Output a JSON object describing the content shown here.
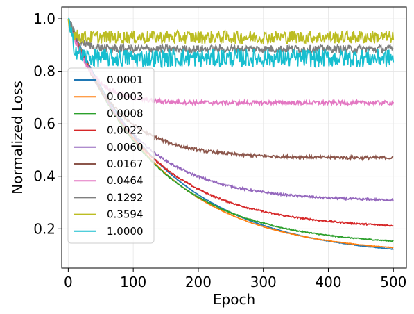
{
  "chart_data": {
    "type": "line",
    "xlabel": "Epoch",
    "ylabel": "Normalized Loss",
    "xlim": [
      -10,
      520
    ],
    "ylim": [
      0.05,
      1.045
    ],
    "xticks": [
      0,
      100,
      200,
      300,
      400,
      500
    ],
    "yticks": [
      0.2,
      0.4,
      0.6,
      0.8,
      1.0
    ],
    "xtick_labels": [
      "0",
      "100",
      "200",
      "300",
      "400",
      "500"
    ],
    "ytick_labels": [
      "0.2",
      "0.4",
      "0.6",
      "0.8",
      "1.0"
    ],
    "grid": true,
    "legend_position": "left",
    "series": [
      {
        "name": "0.0001",
        "color": "#1f77b4",
        "final": 0.09,
        "noise": 0.001,
        "start": 1.0,
        "tau": 150
      },
      {
        "name": "0.0003",
        "color": "#ff7f0e",
        "final": 0.103,
        "noise": 0.001,
        "start": 1.0,
        "tau": 140
      },
      {
        "name": "0.0008",
        "color": "#2ca02c",
        "final": 0.135,
        "noise": 0.002,
        "start": 1.0,
        "tau": 130
      },
      {
        "name": "0.0022",
        "color": "#d62728",
        "final": 0.2,
        "noise": 0.003,
        "start": 1.0,
        "tau": 120
      },
      {
        "name": "0.0060",
        "color": "#9467bd",
        "final": 0.305,
        "noise": 0.004,
        "start": 1.0,
        "tau": 100
      },
      {
        "name": "0.0167",
        "color": "#8c564b",
        "final": 0.47,
        "noise": 0.006,
        "start": 1.0,
        "tau": 70
      },
      {
        "name": "0.0464",
        "color": "#e377c2",
        "final": 0.68,
        "noise": 0.008,
        "start": 1.0,
        "tau": 35
      },
      {
        "name": "0.1292",
        "color": "#7f7f7f",
        "final": 0.885,
        "noise": 0.015,
        "start": 1.0,
        "tau": 15
      },
      {
        "name": "0.3594",
        "color": "#bcbd22",
        "final": 0.93,
        "noise": 0.025,
        "start": 1.0,
        "tau": 5
      },
      {
        "name": "1.0000",
        "color": "#17becf",
        "final": 0.85,
        "noise": 0.035,
        "start": 1.0,
        "tau": 8
      }
    ],
    "x_range": [
      0,
      500
    ]
  }
}
